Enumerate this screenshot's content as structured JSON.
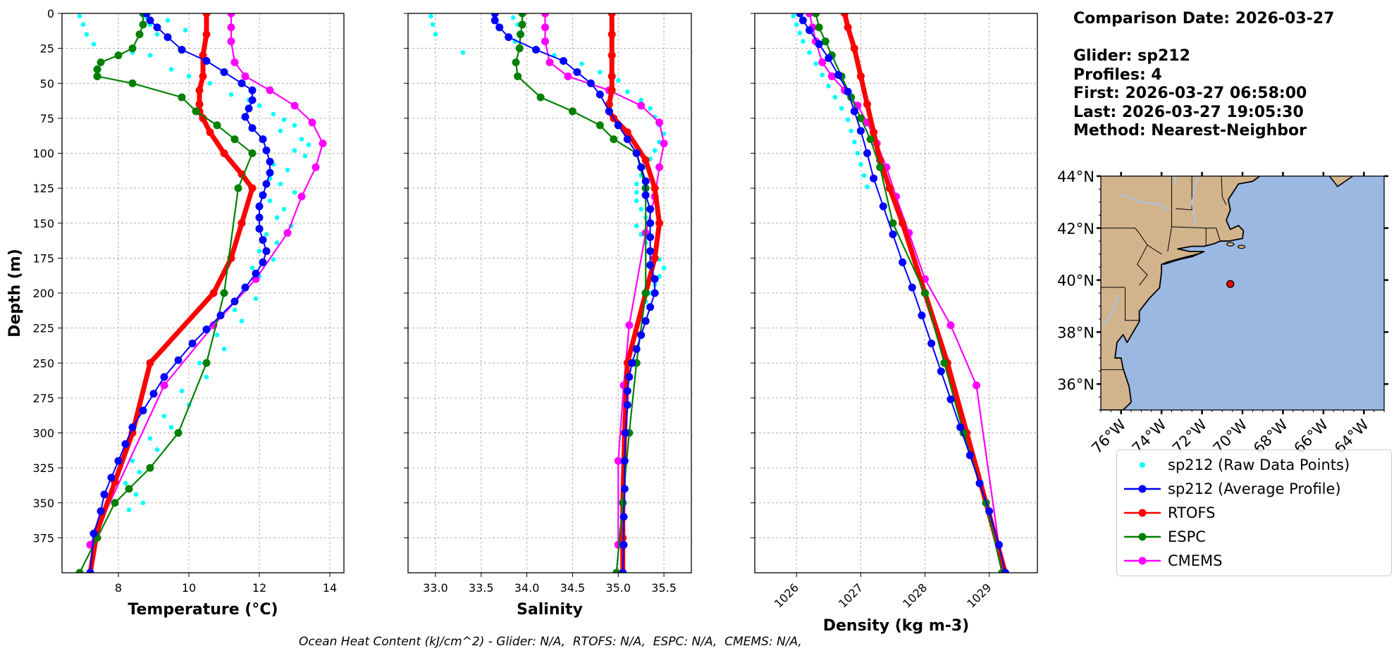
{
  "chart_data": [
    {
      "type": "line",
      "xlabel": "Temperature (°C)",
      "ylabel": "Depth (m)",
      "xlim": [
        6.4,
        14.4
      ],
      "ylim": [
        400,
        0
      ],
      "xticks": [
        8,
        10,
        12,
        14
      ],
      "yticks": [
        0,
        25,
        50,
        75,
        100,
        125,
        150,
        175,
        200,
        225,
        250,
        275,
        300,
        325,
        350,
        375
      ],
      "grid": true,
      "series": [
        {
          "name": "sp212 (Raw Data Points)",
          "type": "scatter",
          "x": [
            6.9,
            7.0,
            7.1,
            7.3,
            8.8,
            8.9,
            9.1,
            9.4,
            9.9,
            8.4,
            8.9,
            9.5,
            10.0,
            10.6,
            11.2,
            11.7,
            12.0,
            12.4,
            12.7,
            13.0,
            12.6,
            13.2,
            13.4,
            13.0,
            13.3,
            12.4,
            12.8,
            12.3,
            12.6,
            13.0,
            12.3,
            12.7,
            12.5,
            12.9,
            12.2,
            12.5,
            12.0,
            12.4,
            11.8,
            12.0,
            11.6,
            11.9,
            11.3,
            11.5,
            10.8,
            11.0,
            10.3,
            10.5,
            9.8,
            10.0,
            9.3,
            9.5,
            8.9,
            9.1,
            8.4,
            8.6,
            8.2,
            8.5,
            8.7,
            8.3
          ],
          "y": [
            2,
            8,
            15,
            22,
            3,
            8,
            15,
            5,
            12,
            28,
            30,
            40,
            45,
            50,
            58,
            62,
            66,
            72,
            76,
            80,
            84,
            90,
            94,
            98,
            102,
            108,
            112,
            118,
            122,
            128,
            134,
            140,
            146,
            152,
            158,
            164,
            170,
            176,
            182,
            188,
            196,
            204,
            212,
            220,
            230,
            240,
            250,
            260,
            270,
            280,
            288,
            296,
            304,
            312,
            320,
            328,
            336,
            344,
            350,
            355
          ]
        },
        {
          "name": "sp212 (Average Profile)",
          "x": [
            8.8,
            8.9,
            9.1,
            9.4,
            9.8,
            10.5,
            11.0,
            11.5,
            11.8,
            11.8,
            11.7,
            11.6,
            11.8,
            12.1,
            12.2,
            12.3,
            12.3,
            12.2,
            12.1,
            12.0,
            12.0,
            12.0,
            12.1,
            12.2,
            12.1,
            11.9,
            11.6,
            11.3,
            10.9,
            10.5,
            10.1,
            9.7,
            9.3,
            9.0,
            8.7,
            8.4,
            8.2,
            8.0,
            7.8,
            7.6,
            7.5,
            7.3,
            7.2
          ],
          "y": [
            0,
            5,
            10,
            17,
            26,
            34,
            42,
            50,
            55,
            62,
            68,
            74,
            82,
            90,
            98,
            106,
            114,
            122,
            130,
            138,
            146,
            154,
            162,
            170,
            178,
            186,
            196,
            206,
            216,
            226,
            236,
            248,
            260,
            272,
            284,
            296,
            308,
            320,
            332,
            344,
            356,
            372,
            400
          ]
        },
        {
          "name": "RTOFS",
          "x": [
            10.5,
            10.5,
            10.4,
            10.4,
            10.3,
            10.3,
            10.3,
            10.4,
            10.6,
            11.0,
            11.5,
            11.8,
            11.5,
            11.2,
            10.7,
            8.9,
            8.4,
            7.9,
            7.4,
            7.2
          ],
          "y": [
            0,
            15,
            30,
            45,
            55,
            65,
            70,
            75,
            85,
            100,
            115,
            125,
            150,
            175,
            200,
            250,
            300,
            335,
            370,
            400
          ]
        },
        {
          "name": "ESPC",
          "x": [
            8.7,
            8.7,
            8.6,
            8.4,
            8.0,
            7.5,
            7.4,
            7.4,
            8.4,
            9.8,
            10.2,
            10.8,
            11.3,
            11.8,
            11.4,
            11.0,
            10.5,
            9.7,
            8.9,
            8.3,
            7.9,
            7.4,
            6.9
          ],
          "y": [
            0,
            8,
            15,
            25,
            30,
            35,
            40,
            45,
            50,
            60,
            70,
            80,
            90,
            100,
            125,
            200,
            250,
            300,
            325,
            340,
            350,
            375,
            400
          ]
        },
        {
          "name": "CMEMS",
          "x": [
            11.2,
            11.2,
            11.2,
            11.3,
            11.6,
            12.3,
            13.0,
            13.5,
            13.8,
            13.6,
            13.2,
            12.8,
            11.9,
            10.7,
            9.3,
            7.2
          ],
          "y": [
            0,
            10,
            20,
            35,
            45,
            55,
            66,
            78,
            93,
            110,
            131,
            157,
            190,
            223,
            266,
            380
          ]
        }
      ]
    },
    {
      "type": "line",
      "xlabel": "Salinity",
      "ylabel": "",
      "xlim": [
        32.7,
        35.8
      ],
      "ylim": [
        400,
        0
      ],
      "xticks": [
        33.0,
        33.5,
        34.0,
        34.5,
        35.0,
        35.5
      ],
      "xticklabels": [
        "33.0",
        "33.5",
        "34.0",
        "34.5",
        "35.0",
        "35.5"
      ],
      "yticks": [
        0,
        25,
        50,
        75,
        100,
        125,
        150,
        175,
        200,
        225,
        250,
        275,
        300,
        325,
        350,
        375
      ],
      "grid": true,
      "series": [
        {
          "name": "sp212 (Raw Data Points)",
          "type": "scatter",
          "x": [
            32.95,
            32.97,
            33.0,
            33.3,
            33.85,
            33.9,
            33.95,
            33.87,
            33.93,
            34.3,
            34.6,
            34.8,
            35.0,
            35.1,
            35.25,
            35.35,
            35.4,
            35.45,
            35.5,
            35.45,
            35.4,
            35.35,
            35.3,
            35.25,
            35.2,
            35.2,
            35.2,
            35.25,
            35.3,
            35.2,
            35.25,
            35.3,
            35.4,
            35.45,
            35.5,
            35.45,
            35.4,
            35.35,
            35.3
          ],
          "y": [
            2,
            8,
            15,
            28,
            3,
            8,
            15,
            20,
            24,
            30,
            36,
            42,
            48,
            56,
            62,
            68,
            74,
            80,
            86,
            92,
            98,
            104,
            110,
            116,
            122,
            128,
            134,
            140,
            146,
            152,
            158,
            164,
            170,
            176,
            182,
            188,
            194,
            200,
            206
          ]
        },
        {
          "name": "sp212 (Average Profile)",
          "x": [
            33.65,
            33.65,
            33.7,
            33.8,
            34.1,
            34.4,
            34.55,
            34.7,
            34.8,
            34.9,
            35.0,
            35.1,
            35.2,
            35.25,
            35.3,
            35.3,
            35.35,
            35.35,
            35.35,
            35.35,
            35.35,
            35.4,
            35.4,
            35.35,
            35.3,
            35.25,
            35.2,
            35.15,
            35.12,
            35.1,
            35.1,
            35.08,
            35.07,
            35.07,
            35.06,
            35.06,
            35.05
          ],
          "y": [
            0,
            5,
            10,
            17,
            26,
            34,
            42,
            50,
            58,
            70,
            80,
            90,
            100,
            110,
            120,
            130,
            140,
            150,
            160,
            170,
            180,
            190,
            200,
            210,
            220,
            230,
            240,
            250,
            260,
            270,
            280,
            300,
            320,
            340,
            360,
            380,
            400
          ]
        },
        {
          "name": "RTOFS",
          "x": [
            34.93,
            34.93,
            34.93,
            34.93,
            34.93,
            34.9,
            34.9,
            34.95,
            35.1,
            35.3,
            35.4,
            35.45,
            35.4,
            35.3,
            35.1,
            35.07,
            35.05,
            35.05,
            35.05
          ],
          "y": [
            0,
            15,
            30,
            45,
            55,
            65,
            70,
            75,
            85,
            105,
            125,
            150,
            175,
            200,
            250,
            300,
            350,
            375,
            400
          ]
        },
        {
          "name": "ESPC",
          "x": [
            33.95,
            33.95,
            33.93,
            33.92,
            33.88,
            33.9,
            34.15,
            34.5,
            34.8,
            34.95,
            35.2,
            35.3,
            35.3,
            35.2,
            35.12,
            35.05,
            34.98
          ],
          "y": [
            0,
            8,
            15,
            25,
            35,
            45,
            60,
            70,
            80,
            90,
            100,
            125,
            200,
            250,
            300,
            350,
            400
          ]
        },
        {
          "name": "CMEMS",
          "x": [
            34.2,
            34.2,
            34.2,
            34.25,
            34.45,
            34.9,
            35.25,
            35.45,
            35.5,
            35.45,
            35.4,
            35.3,
            35.12,
            35.06,
            35.0,
            35.0
          ],
          "y": [
            0,
            10,
            20,
            35,
            45,
            55,
            66,
            78,
            93,
            110,
            131,
            157,
            223,
            266,
            320,
            380
          ]
        }
      ]
    },
    {
      "type": "line",
      "xlabel": "Density (kg m-3)",
      "ylabel": "",
      "xlim": [
        1025.35,
        1029.75
      ],
      "ylim": [
        400,
        0
      ],
      "xticks": [
        1026,
        1027,
        1028,
        1029
      ],
      "xticklabels": [
        "1026",
        "1027",
        "1028",
        "1029"
      ],
      "yticks": [
        0,
        25,
        50,
        75,
        100,
        125,
        150,
        175,
        200,
        225,
        250,
        275,
        300,
        325,
        350,
        375
      ],
      "grid": true,
      "series": [
        {
          "name": "sp212 (Raw Data Points)",
          "type": "scatter",
          "x": [
            1025.95,
            1026.0,
            1026.05,
            1026.1,
            1026.2,
            1026.3,
            1026.4,
            1026.5,
            1026.6,
            1026.7,
            1026.8,
            1026.85,
            1026.9,
            1026.95,
            1027.0,
            1027.05,
            1027.1
          ],
          "y": [
            2,
            8,
            14,
            20,
            28,
            36,
            44,
            52,
            60,
            68,
            76,
            84,
            92,
            100,
            108,
            116,
            124
          ]
        },
        {
          "name": "sp212 (Average Profile)",
          "x": [
            1026.05,
            1026.1,
            1026.2,
            1026.35,
            1026.5,
            1026.65,
            1026.8,
            1026.9,
            1027.0,
            1027.1,
            1027.2,
            1027.35,
            1027.5,
            1027.65,
            1027.8,
            1027.95,
            1028.1,
            1028.25,
            1028.4,
            1028.55,
            1028.7,
            1028.85,
            1029.0,
            1029.15,
            1029.25
          ],
          "y": [
            0,
            5,
            12,
            22,
            32,
            44,
            56,
            70,
            84,
            100,
            118,
            138,
            158,
            178,
            196,
            216,
            236,
            256,
            276,
            296,
            316,
            336,
            356,
            380,
            400
          ]
        },
        {
          "name": "RTOFS",
          "x": [
            1026.75,
            1026.8,
            1026.9,
            1027.0,
            1027.1,
            1027.2,
            1027.3,
            1027.45,
            1027.65,
            1028.0,
            1028.35,
            1028.65,
            1028.95,
            1029.25
          ],
          "y": [
            0,
            10,
            25,
            45,
            65,
            85,
            105,
            125,
            150,
            200,
            250,
            300,
            350,
            400
          ]
        },
        {
          "name": "ESPC",
          "x": [
            1026.3,
            1026.35,
            1026.45,
            1026.55,
            1026.7,
            1026.85,
            1027.0,
            1027.15,
            1027.3,
            1027.5,
            1028.0,
            1028.3,
            1028.6,
            1028.95,
            1029.2
          ],
          "y": [
            0,
            10,
            20,
            30,
            45,
            60,
            75,
            90,
            110,
            150,
            200,
            250,
            300,
            350,
            400
          ]
        },
        {
          "name": "CMEMS",
          "x": [
            1026.2,
            1026.25,
            1026.3,
            1026.4,
            1026.55,
            1026.75,
            1026.95,
            1027.1,
            1027.25,
            1027.4,
            1027.55,
            1027.75,
            1028.0,
            1028.4,
            1028.8,
            1029.15
          ],
          "y": [
            0,
            10,
            20,
            35,
            45,
            55,
            66,
            78,
            93,
            110,
            131,
            157,
            190,
            223,
            266,
            380
          ]
        }
      ]
    }
  ],
  "series_styles": {
    "sp212 (Raw Data Points)": {
      "color": "#00ffff"
    },
    "sp212 (Average Profile)": {
      "color": "#0000ff"
    },
    "RTOFS": {
      "color": "#ff0000"
    },
    "ESPC": {
      "color": "#008000"
    },
    "CMEMS": {
      "color": "#ff00ff"
    }
  },
  "info": {
    "comparison_date": "Comparison Date: 2026-03-27",
    "glider": "Glider: sp212",
    "profiles": "Profiles: 4",
    "first": "First: 2026-03-27 06:58:00",
    "last": "Last: 2026-03-27 19:05:30",
    "method": "Method: Nearest-Neighbor"
  },
  "map": {
    "lon_range": [
      -77.0,
      -63.0
    ],
    "lat_range": [
      35.0,
      44.0
    ],
    "lat_ticks": [
      44,
      42,
      40,
      38,
      36
    ],
    "lat_labels": [
      "44°N",
      "42°N",
      "40°N",
      "38°N",
      "36°N"
    ],
    "lon_ticks": [
      -76,
      -74,
      -72,
      -70,
      -68,
      -66,
      -64
    ],
    "lon_labels": [
      "76°W",
      "74°W",
      "72°W",
      "70°W",
      "68°W",
      "66°W",
      "64°W"
    ],
    "marker": {
      "lon": -70.6,
      "lat": 39.85
    },
    "land_color": "#d2b48c",
    "ocean_color": "#9bb8e3"
  },
  "legend": {
    "items": [
      {
        "label": "sp212 (Raw Data Points)",
        "color": "#00ffff",
        "style": "dot"
      },
      {
        "label": "sp212 (Average Profile)",
        "color": "#0000ff",
        "style": "line"
      },
      {
        "label": "RTOFS",
        "color": "#ff0000",
        "style": "line"
      },
      {
        "label": "ESPC",
        "color": "#008000",
        "style": "line"
      },
      {
        "label": "CMEMS",
        "color": "#ff00ff",
        "style": "line"
      }
    ]
  },
  "footer": "Ocean Heat Content (kJ/cm^2) - Glider: N/A,  RTOFS: N/A,  ESPC: N/A,  CMEMS: N/A,"
}
